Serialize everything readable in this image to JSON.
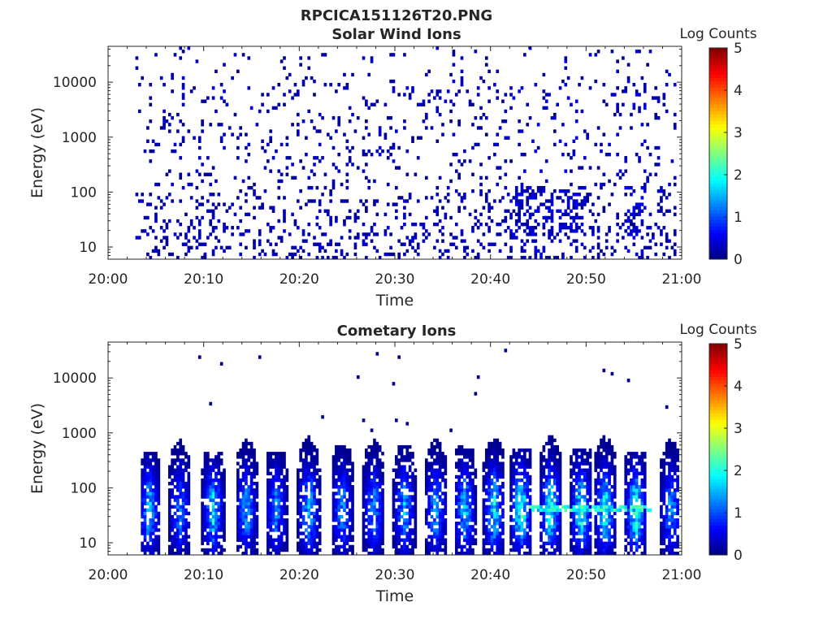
{
  "figure": {
    "title": "RPCICA151126T20.PNG"
  },
  "chart_data": [
    {
      "type": "heatmap",
      "title": "Solar Wind Ions",
      "xlabel": "Time",
      "ylabel": "Energy (eV)",
      "y_scale": "log",
      "xlim": [
        "20:00",
        "21:00"
      ],
      "ylim": [
        6,
        45000
      ],
      "x_ticks": [
        "20:00",
        "20:10",
        "20:20",
        "20:30",
        "20:40",
        "20:50",
        "21:00"
      ],
      "y_ticks": [
        10,
        100,
        1000,
        10000
      ],
      "y_tick_labels": [
        "10",
        "100",
        "1000",
        "10000"
      ],
      "colorbar": {
        "title": "Log Counts",
        "range": [
          0,
          5
        ],
        "ticks": [
          "0",
          "1",
          "2",
          "3",
          "4",
          "5"
        ],
        "colormap": "jet"
      },
      "data_span_minutes": [
        2.8,
        59.3
      ],
      "note_values": "Sparse counts mostly at level 0-0.5 (dark blue) spread across all energies; denser columns near 20:42-20:46 and 20:54-20:56 at 20-100 eV"
    },
    {
      "type": "heatmap",
      "title": "Cometary Ions",
      "xlabel": "Time",
      "ylabel": "Energy (eV)",
      "y_scale": "log",
      "xlim": [
        "20:00",
        "21:00"
      ],
      "ylim": [
        6,
        45000
      ],
      "x_ticks": [
        "20:00",
        "20:10",
        "20:20",
        "20:30",
        "20:40",
        "20:50",
        "21:00"
      ],
      "y_ticks": [
        10,
        100,
        1000,
        10000
      ],
      "y_tick_labels": [
        "10",
        "100",
        "1000",
        "10000"
      ],
      "colorbar": {
        "title": "Log Counts",
        "range": [
          0,
          5
        ],
        "ticks": [
          "0",
          "1",
          "2",
          "3",
          "4",
          "5"
        ],
        "colormap": "jet"
      },
      "data_span_minutes": [
        3.3,
        59.8
      ],
      "bursts": [
        {
          "center_min": 4.3,
          "peak_log": 1.9
        },
        {
          "center_min": 7.5,
          "peak_log": 1.5
        },
        {
          "center_min": 11.0,
          "peak_log": 2.0
        },
        {
          "center_min": 14.5,
          "peak_log": 1.7
        },
        {
          "center_min": 17.6,
          "peak_log": 1.5
        },
        {
          "center_min": 21.0,
          "peak_log": 1.9
        },
        {
          "center_min": 24.5,
          "peak_log": 1.6
        },
        {
          "center_min": 27.8,
          "peak_log": 1.6
        },
        {
          "center_min": 31.0,
          "peak_log": 1.7
        },
        {
          "center_min": 34.3,
          "peak_log": 1.7
        },
        {
          "center_min": 37.3,
          "peak_log": 1.9
        },
        {
          "center_min": 40.4,
          "peak_log": 2.1
        },
        {
          "center_min": 43.2,
          "peak_log": 2.5
        },
        {
          "center_min": 46.3,
          "peak_log": 2.3
        },
        {
          "center_min": 49.5,
          "peak_log": 2.4
        },
        {
          "center_min": 52.0,
          "peak_log": 2.2
        },
        {
          "center_min": 55.2,
          "peak_log": 2.4
        },
        {
          "center_min": 58.9,
          "peak_log": 1.6
        }
      ]
    }
  ]
}
